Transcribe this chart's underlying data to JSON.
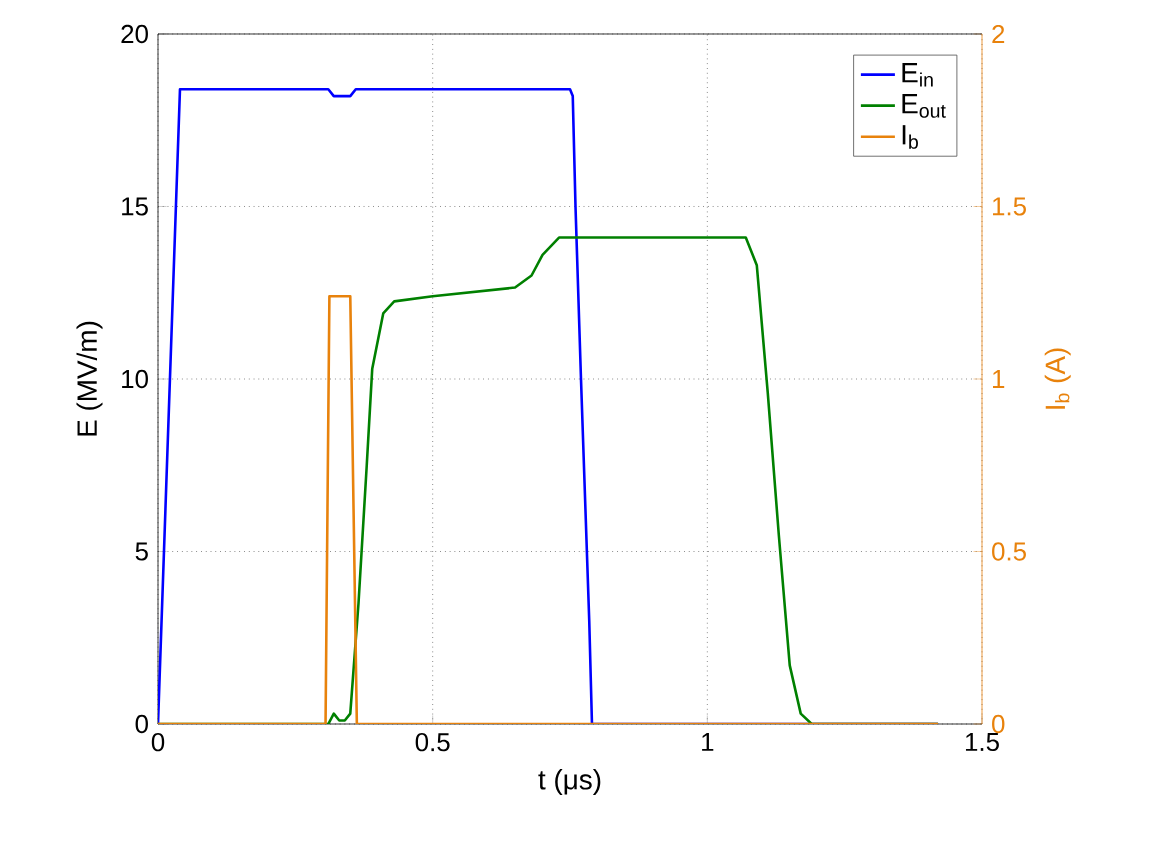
{
  "chart_data": {
    "type": "line",
    "xlabel": "t (μs)",
    "ylabel": "E (MV/m)",
    "y2label": "I$_{b}$ (A)",
    "xlim": [
      0,
      1.5
    ],
    "xticks": [
      0,
      0.5,
      1,
      1.5
    ],
    "ylim": [
      0,
      20
    ],
    "yticks": [
      0,
      5,
      10,
      15,
      20
    ],
    "y2lim": [
      0,
      2
    ],
    "y2ticks": [
      0,
      0.5,
      1,
      1.5,
      2
    ],
    "grid": true,
    "legend": "top right",
    "series": [
      {
        "name": "E$_{in}$",
        "color": "#0000ff",
        "x": [
          0,
          0.04,
          0.31,
          0.32,
          0.35,
          0.36,
          0.75,
          0.755,
          0.76,
          0.77,
          0.785,
          0.79,
          1.42
        ],
        "values": [
          0,
          18.4,
          18.4,
          18.2,
          18.2,
          18.4,
          18.4,
          18.2,
          15,
          10,
          3,
          0,
          0
        ]
      },
      {
        "name": "E$_{out}$",
        "color": "#008000",
        "x": [
          0,
          0.31,
          0.32,
          0.33,
          0.34,
          0.35,
          0.365,
          0.38,
          0.39,
          0.41,
          0.43,
          0.5,
          0.65,
          0.68,
          0.7,
          0.73,
          1.07,
          1.09,
          1.11,
          1.13,
          1.15,
          1.17,
          1.19,
          1.42
        ],
        "values": [
          0,
          0,
          0.3,
          0.1,
          0.1,
          0.3,
          3.5,
          7.5,
          10.3,
          11.9,
          12.25,
          12.4,
          12.65,
          13.0,
          13.6,
          14.1,
          14.1,
          13.3,
          9.6,
          5.5,
          1.7,
          0.3,
          0,
          0
        ]
      },
      {
        "name": "I$_{b}$",
        "color": "#e8820c",
        "axis": "y2",
        "x": [
          0,
          0.305,
          0.312,
          0.35,
          0.362,
          1.42
        ],
        "values": [
          0,
          0,
          1.24,
          1.24,
          0,
          0
        ]
      }
    ]
  }
}
